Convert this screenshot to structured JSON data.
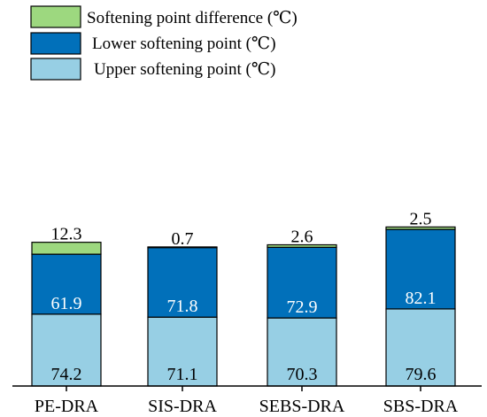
{
  "chart_data": {
    "type": "bar",
    "stacked": true,
    "categories": [
      "PE-DRA",
      "SIS-DRA",
      "SEBS-DRA",
      "SBS-DRA"
    ],
    "series": [
      {
        "name": "Upper softening point (℃)",
        "values": [
          74.2,
          71.1,
          70.3,
          79.6
        ],
        "color": "#97cfe4"
      },
      {
        "name": "Lower softening point (℃)",
        "values": [
          61.9,
          71.8,
          72.9,
          82.1
        ],
        "color": "#0170ba"
      },
      {
        "name": "Softening point difference (℃)",
        "values": [
          12.3,
          0.7,
          2.6,
          2.5
        ],
        "color": "#9dd87f"
      }
    ],
    "data_labels": [
      [
        "74.2",
        "71.1",
        "70.3",
        "79.6"
      ],
      [
        "61.9",
        "71.8",
        "72.9",
        "82.1"
      ],
      [
        "12.3",
        "0.7",
        "2.6",
        "2.5"
      ]
    ],
    "legend": {
      "position": "top-left",
      "items": [
        {
          "label": "Softening point difference (℃)",
          "color": "#9dd87f"
        },
        {
          "label": "Lower softening point (℃)",
          "color": "#0170ba"
        },
        {
          "label": "Upper softening point (℃)",
          "color": "#97cfe4"
        }
      ]
    },
    "ylim": [
      0,
      190
    ],
    "grid": false,
    "title": "",
    "xlabel": "",
    "ylabel": ""
  }
}
